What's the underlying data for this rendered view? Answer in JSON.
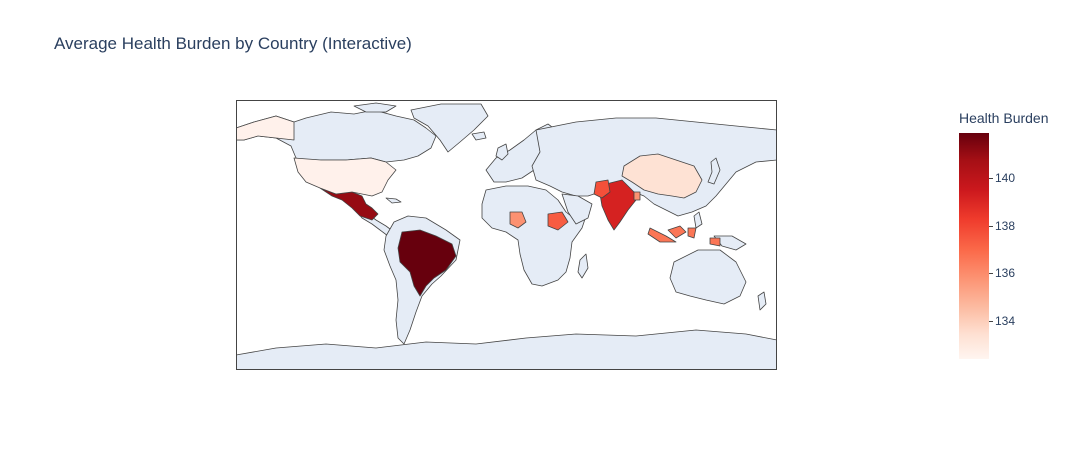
{
  "title": "Average Health Burden by Country (Interactive)",
  "colorbar": {
    "title": "Health Burden",
    "ticks": [
      "140",
      "138",
      "136",
      "134"
    ],
    "colorscale": [
      "#fff5f0",
      "#fee0d2",
      "#fcbba1",
      "#fc9272",
      "#fb6a4a",
      "#ef3b2c",
      "#cb181d",
      "#a50f15",
      "#67000d"
    ],
    "min": 132.4,
    "max": 141.9
  },
  "map_style": {
    "land_color": "#e5ecf6",
    "border_color": "#444444",
    "ocean_color": "#ffffff"
  },
  "chart_data": {
    "type": "heatmap",
    "subtype": "choropleth",
    "title": "Average Health Burden by Country (Interactive)",
    "colorbar_title": "Health Burden",
    "values_by_country": [
      {
        "country": "Brazil",
        "value": 141.9
      },
      {
        "country": "Mexico",
        "value": 141.0
      },
      {
        "country": "India",
        "value": 139.2
      },
      {
        "country": "Pakistan",
        "value": 137.8
      },
      {
        "country": "Ethiopia",
        "value": 137.5
      },
      {
        "country": "Indonesia",
        "value": 136.8
      },
      {
        "country": "Nigeria",
        "value": 136.0
      },
      {
        "country": "Bangladesh",
        "value": 136.0
      },
      {
        "country": "China",
        "value": 133.5
      },
      {
        "country": "United States",
        "value": 132.6
      }
    ]
  }
}
